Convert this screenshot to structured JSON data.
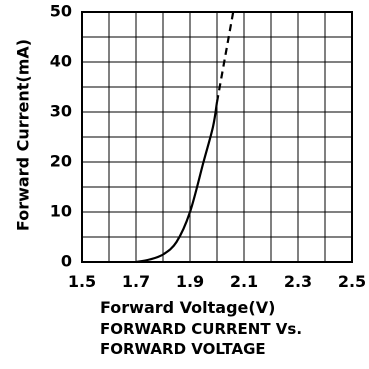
{
  "chart_data": {
    "type": "line",
    "xlabel": "Forward Voltage(V)",
    "ylabel": "Forward Current(mA)",
    "caption": [
      "FORWARD CURRENT Vs.",
      "FORWARD VOLTAGE"
    ],
    "xlim": [
      1.5,
      2.5
    ],
    "ylim": [
      0,
      50
    ],
    "x_ticks": [
      "1.5",
      "1.7",
      "1.9",
      "2.1",
      "2.3",
      "2.5"
    ],
    "y_ticks": [
      "0",
      "10",
      "20",
      "30",
      "40",
      "50"
    ],
    "grid": true,
    "series": [
      {
        "style": "solid",
        "x": [
          1.7,
          1.75,
          1.8,
          1.85,
          1.9,
          1.95,
          1.985,
          2.0
        ],
        "y": [
          0,
          0.5,
          1.5,
          4,
          10,
          20,
          27,
          32
        ]
      },
      {
        "style": "dashed",
        "x": [
          2.0,
          2.03,
          2.06
        ],
        "y": [
          32,
          41,
          50
        ]
      }
    ]
  }
}
